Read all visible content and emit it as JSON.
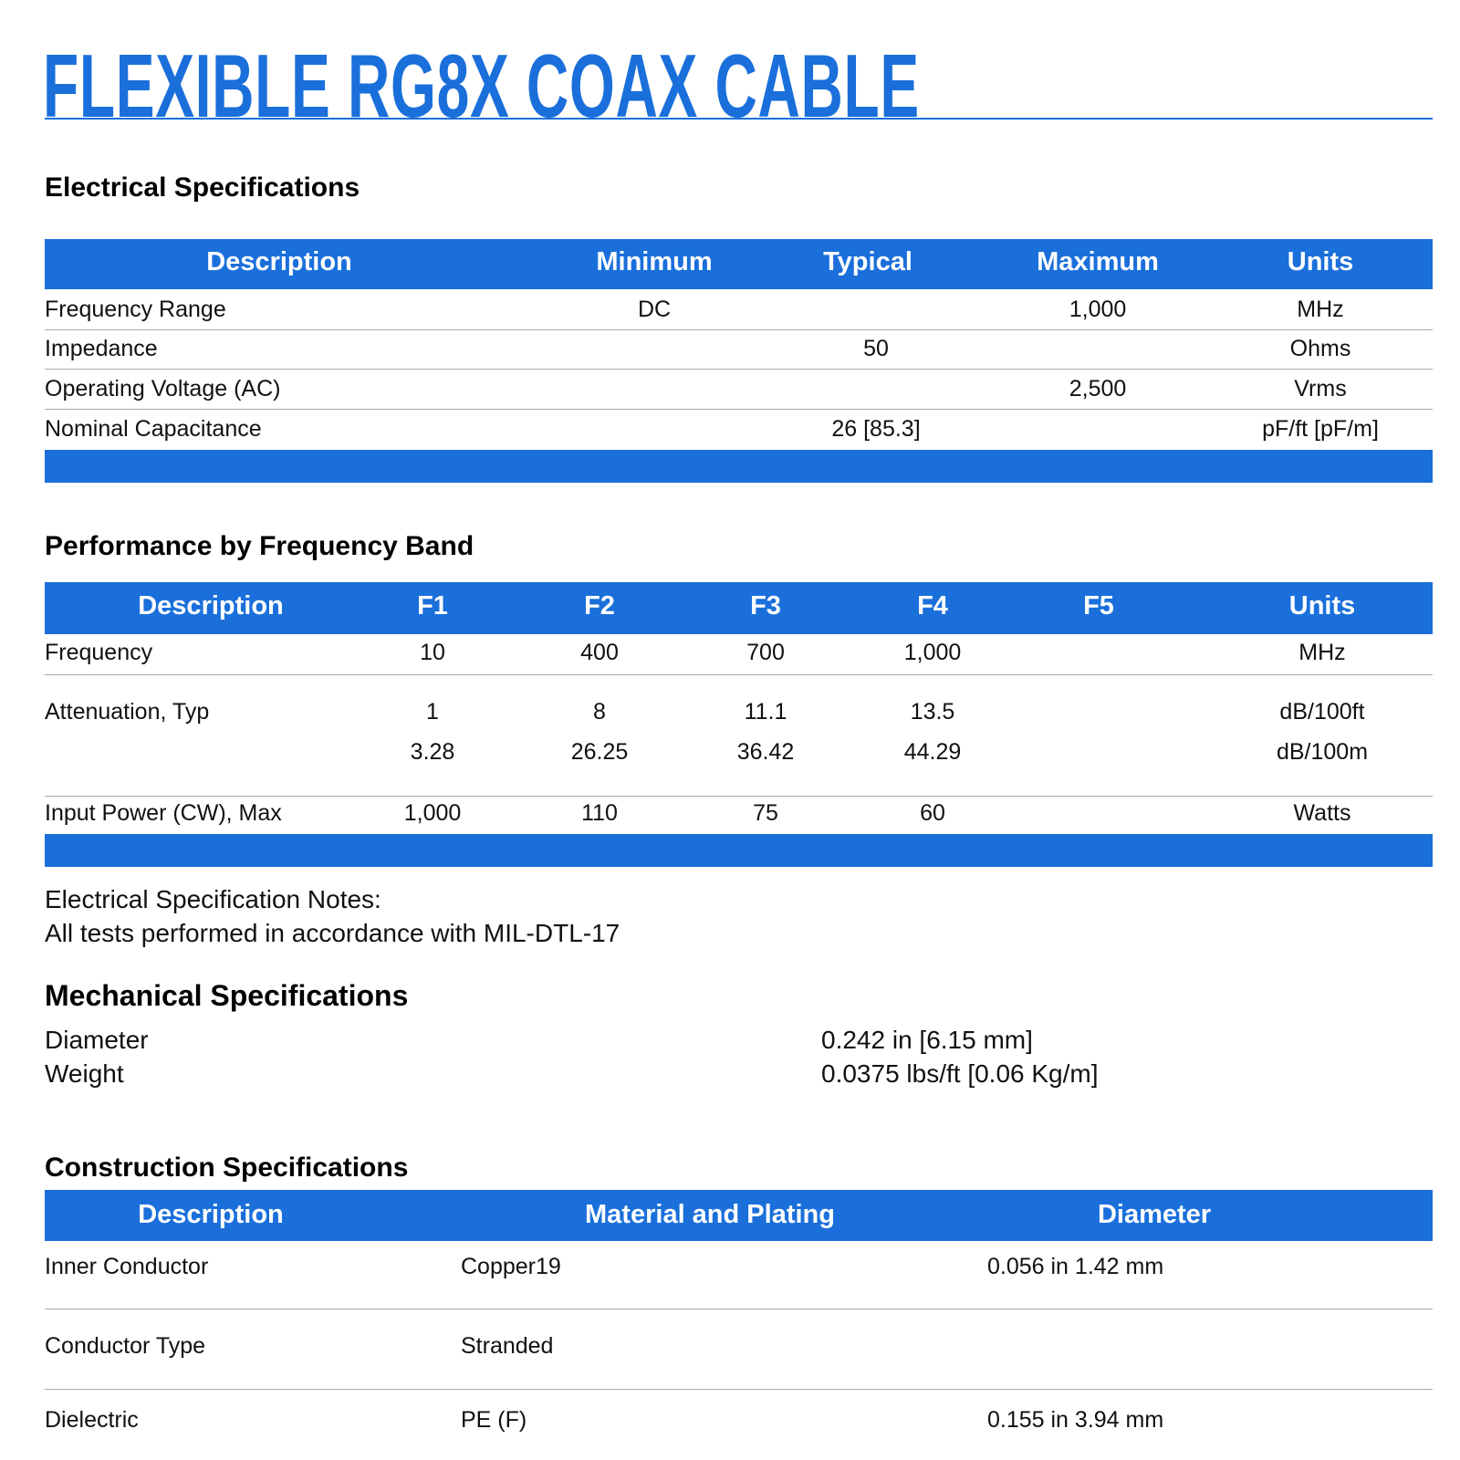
{
  "title": "FLEXIBLE RG8X COAX CABLE",
  "accent_color": "#1a6fdb",
  "electrical": {
    "heading": "Electrical Specifications",
    "columns": [
      "Description",
      "Minimum",
      "Typical",
      "Maximum",
      "Units"
    ],
    "rows": [
      [
        "Frequency Range",
        "DC",
        "",
        "1,000",
        "MHz"
      ],
      [
        "Impedance",
        "",
        "50",
        "",
        "Ohms"
      ],
      [
        "Operating Voltage (AC)",
        "",
        "",
        "2,500",
        "Vrms"
      ],
      [
        "Nominal Capacitance",
        "",
        "26 [85.3]",
        "",
        "pF/ft [pF/m]"
      ]
    ]
  },
  "performance": {
    "heading": "Performance by Frequency Band",
    "columns": [
      "Description",
      "F1",
      "F2",
      "F3",
      "F4",
      "F5",
      "Units"
    ],
    "rows": [
      [
        "Frequency",
        "10",
        "400",
        "700",
        "1,000",
        "",
        "MHz"
      ],
      [
        "Attenuation, Typ",
        "1",
        "8",
        "11.1",
        "13.5",
        "",
        "dB/100ft"
      ],
      [
        "",
        "3.28",
        "26.25",
        "36.42",
        "44.29",
        "",
        "dB/100m"
      ],
      [
        "Input Power (CW), Max",
        "1,000",
        "110",
        "75",
        "60",
        "",
        "Watts"
      ]
    ]
  },
  "notes": {
    "heading": "Electrical Specification Notes:",
    "text": "All tests performed in accordance with MIL-DTL-17"
  },
  "mechanical": {
    "heading": "Mechanical Specifications",
    "rows": [
      [
        "Diameter",
        "0.242 in [6.15 mm]"
      ],
      [
        "Weight",
        "0.0375 lbs/ft [0.06 Kg/m]"
      ]
    ]
  },
  "construction": {
    "heading": "Construction Specifications",
    "columns": [
      "Description",
      "Material and Plating",
      "Diameter"
    ],
    "rows": [
      [
        "Inner Conductor",
        "Copper19",
        "0.056 in 1.42 mm"
      ],
      [
        "Conductor Type",
        "Stranded",
        ""
      ],
      [
        "Dielectric",
        "PE (F)",
        "0.155 in 3.94 mm"
      ]
    ]
  }
}
